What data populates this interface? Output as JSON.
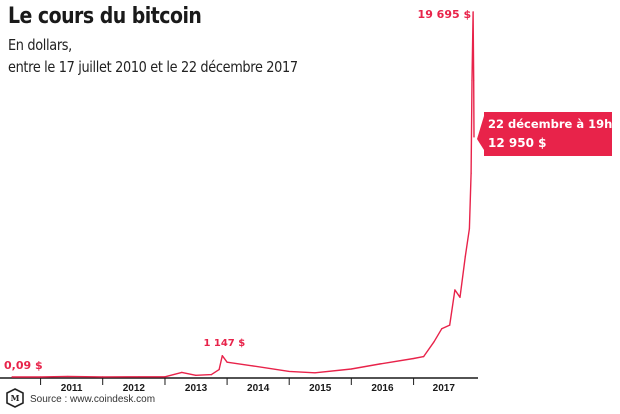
{
  "chart_data": {
    "type": "line",
    "title": "Le cours du bitcoin",
    "subtitle_1": "En dollars,",
    "subtitle_2": "entre le 17 juillet 2010 et le 22 décembre 2017",
    "x_start": "2010-07-17",
    "x_end": "2017-12-22",
    "x_tick_labels": [
      "2011",
      "2012",
      "2013",
      "2014",
      "2015",
      "2016",
      "2017"
    ],
    "grid": false,
    "line_color": "#e8234a",
    "series": [
      {
        "x": [
          "2010-07-17",
          "2011-01-01",
          "2011-06-10",
          "2012-01-01",
          "2012-08-01",
          "2013-01-01",
          "2013-04-10",
          "2013-07-01",
          "2013-10-01",
          "2013-11-15",
          "2013-12-04",
          "2014-01-01",
          "2014-06-01",
          "2015-01-01",
          "2015-06-01",
          "2016-01-01",
          "2016-06-15",
          "2017-01-01",
          "2017-03-01",
          "2017-05-01",
          "2017-06-15",
          "2017-08-01",
          "2017-09-01",
          "2017-10-01",
          "2017-11-01",
          "2017-11-25",
          "2017-12-05",
          "2017-12-10",
          "2017-12-17",
          "2017-12-20",
          "2017-12-22"
        ],
        "y": [
          0.09,
          0.3,
          30,
          5,
          10,
          13,
          250,
          90,
          130,
          400,
          1147,
          800,
          600,
          300,
          225,
          430,
          700,
          1000,
          1100,
          1900,
          2600,
          2800,
          4700,
          4300,
          6500,
          8000,
          11000,
          16000,
          19695,
          16000,
          12950
        ]
      }
    ],
    "annotations": {
      "start_value": "0,09 $",
      "peak_2013": "1 147 $",
      "peak_2017": "19 695 $",
      "last_date": "22 décembre à 19h",
      "last_value": "12 950 $"
    }
  },
  "source": "Source : www.coindesk.com",
  "colors": {
    "accent": "#e8234a",
    "axis": "#1a1a1a",
    "text": "#1a1a1a"
  },
  "logo_icon": "le-monde-logo"
}
